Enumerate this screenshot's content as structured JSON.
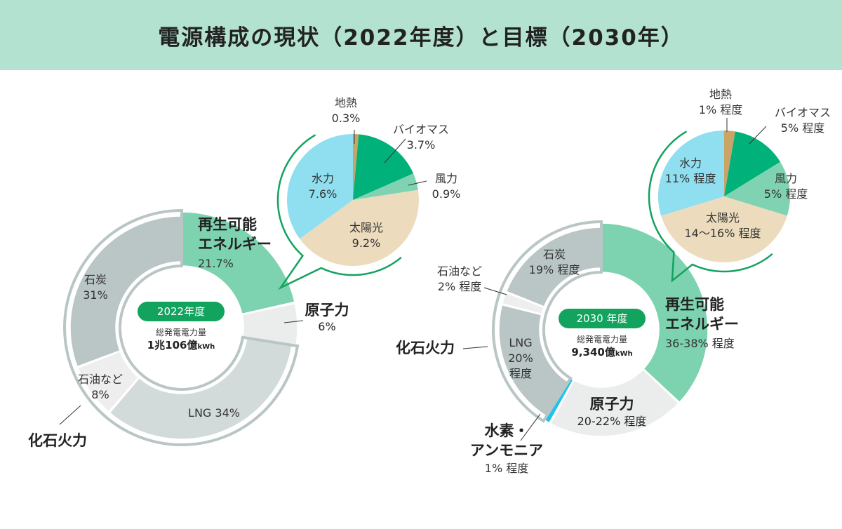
{
  "title": "電源構成の現状（2022年度）と目標（2030年）",
  "colors": {
    "renewable": "#7dd3b0",
    "nuclear": "#ebeded",
    "lng2022": "#d2dada",
    "coal": "#b9c6c5",
    "oil": "#eeeeee",
    "hydrogen": "#1ec3e8",
    "geothermal": "#c9a466",
    "biomass": "#00b27a",
    "wind": "#7fd3b2",
    "solar": "#ecdcbd",
    "hydro": "#8fdff0",
    "accent": "#12a35f"
  },
  "chart_data": [
    {
      "type": "pie",
      "variant": "donut",
      "year_label": "2022年度",
      "total_label": "総発電電力量",
      "total_value": "1兆106億",
      "total_unit": "kWh",
      "group_label": "化石火力",
      "slices": [
        {
          "name": "再生可能エネルギー",
          "name_l1": "再生可能",
          "name_l2": "エネルギー",
          "value": 21.7,
          "label": "21.7%"
        },
        {
          "name": "原子力",
          "value": 6,
          "label": "6%"
        },
        {
          "name": "LNG",
          "value": 34,
          "label": "LNG 34%"
        },
        {
          "name": "石油など",
          "value": 8,
          "label": "8%"
        },
        {
          "name": "石炭",
          "value": 31,
          "label": "31%"
        }
      ],
      "breakdown": {
        "of": "再生可能エネルギー",
        "slices": [
          {
            "name": "地熱",
            "value": 0.3,
            "label": "0.3%"
          },
          {
            "name": "バイオマス",
            "value": 3.7,
            "label": "3.7%"
          },
          {
            "name": "風力",
            "value": 0.9,
            "label": "0.9%"
          },
          {
            "name": "太陽光",
            "value": 9.2,
            "label": "9.2%"
          },
          {
            "name": "水力",
            "value": 7.6,
            "label": "7.6%"
          }
        ]
      }
    },
    {
      "type": "pie",
      "variant": "donut",
      "year_label": "2030 年度",
      "total_label": "総発電電力量",
      "total_value": "9,340億",
      "total_unit": "kWh",
      "group_label": "化石火力",
      "slices": [
        {
          "name": "再生可能エネルギー",
          "name_l1": "再生可能",
          "name_l2": "エネルギー",
          "value": 37,
          "label": "36-38% 程度"
        },
        {
          "name": "原子力",
          "value": 21,
          "label": "20-22% 程度"
        },
        {
          "name": "水素・アンモニア",
          "name_l1": "水素・",
          "name_l2": "アンモニア",
          "value": 1,
          "label": "1% 程度"
        },
        {
          "name": "LNG",
          "value": 20,
          "label": "20%",
          "label2": "程度"
        },
        {
          "name": "石油など",
          "value": 2,
          "label": "2% 程度"
        },
        {
          "name": "石炭",
          "value": 19,
          "label": "19% 程度"
        }
      ],
      "breakdown": {
        "of": "再生可能エネルギー",
        "slices": [
          {
            "name": "地熱",
            "value": 1,
            "label": "1% 程度"
          },
          {
            "name": "バイオマス",
            "value": 5,
            "label": "5% 程度"
          },
          {
            "name": "風力",
            "value": 5,
            "label": "5% 程度"
          },
          {
            "name": "太陽光",
            "value": 15,
            "label": "14～16% 程度"
          },
          {
            "name": "水力",
            "value": 11,
            "label": "11% 程度"
          }
        ]
      }
    }
  ]
}
